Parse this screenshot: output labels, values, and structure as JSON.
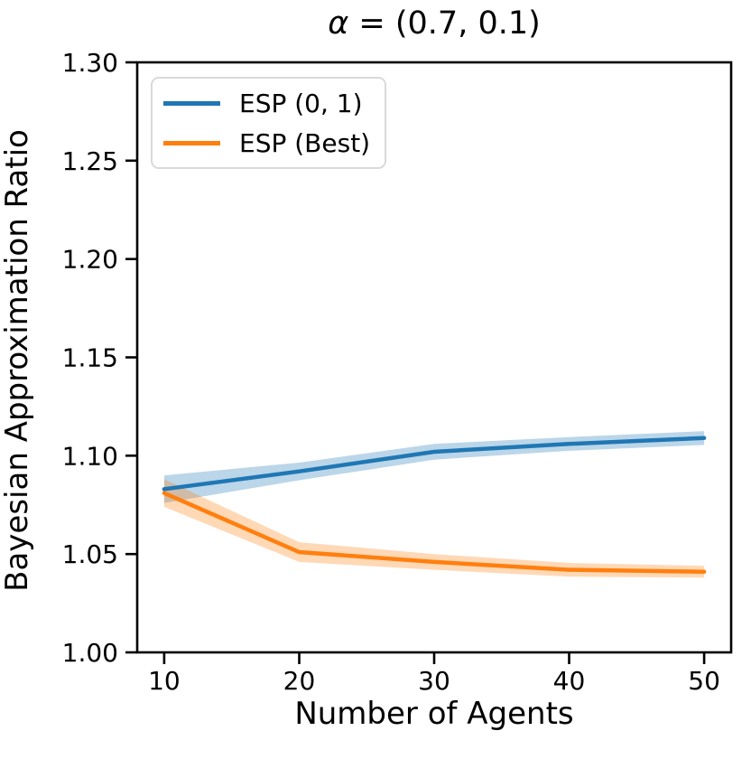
{
  "chart_data": {
    "type": "line",
    "title": "α = (0.7, 0.1)",
    "title_parts": {
      "symbol": "α",
      "rest": " = (0.7, 0.1)"
    },
    "xlabel": "Number of Agents",
    "ylabel": "Bayesian Approximation Ratio",
    "x": [
      10,
      20,
      30,
      40,
      50
    ],
    "xlim": [
      8,
      52
    ],
    "ylim": [
      1.0,
      1.3
    ],
    "grid": false,
    "legend_position": "upper-left",
    "xticks": [
      {
        "value": 10,
        "label": "10"
      },
      {
        "value": 20,
        "label": "20"
      },
      {
        "value": 30,
        "label": "30"
      },
      {
        "value": 40,
        "label": "40"
      },
      {
        "value": 50,
        "label": "50"
      }
    ],
    "yticks": [
      {
        "value": 1.0,
        "label": "1.00"
      },
      {
        "value": 1.05,
        "label": "1.05"
      },
      {
        "value": 1.1,
        "label": "1.10"
      },
      {
        "value": 1.15,
        "label": "1.15"
      },
      {
        "value": 1.2,
        "label": "1.20"
      },
      {
        "value": 1.25,
        "label": "1.25"
      },
      {
        "value": 1.3,
        "label": "1.30"
      }
    ],
    "series": [
      {
        "name": "ESP (0, 1)",
        "color": "#1f77b4",
        "values": [
          1.083,
          1.092,
          1.102,
          1.106,
          1.109
        ],
        "band_lower": [
          1.076,
          1.0875,
          1.098,
          1.1025,
          1.1055
        ],
        "band_upper": [
          1.09,
          1.0965,
          1.106,
          1.1095,
          1.1125
        ]
      },
      {
        "name": "ESP (Best)",
        "color": "#ff7f0e",
        "values": [
          1.081,
          1.051,
          1.046,
          1.042,
          1.041
        ],
        "band_lower": [
          1.074,
          1.046,
          1.042,
          1.0385,
          1.038
        ],
        "band_upper": [
          1.088,
          1.056,
          1.05,
          1.0455,
          1.044
        ]
      }
    ],
    "band_opacity": 0.3,
    "axis_color": "#000000",
    "background_color": "#ffffff"
  }
}
